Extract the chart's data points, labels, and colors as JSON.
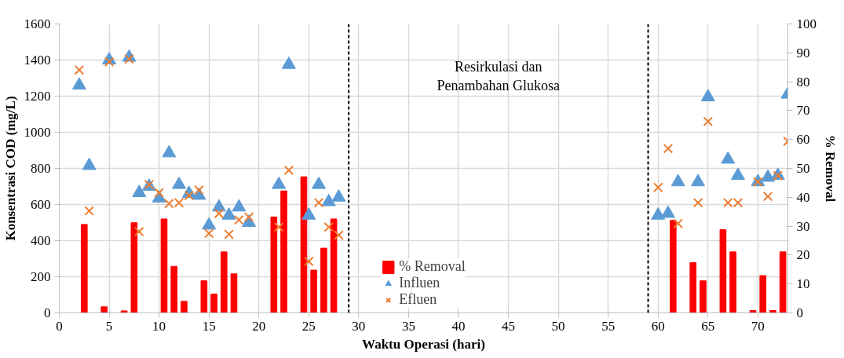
{
  "chart_data": {
    "type": "scatter",
    "xlabel": "Waktu Operasi (hari)",
    "ylabel": "Konsentrasi COD (mg/L)",
    "y2label": "% Removal",
    "xlim": [
      0,
      73
    ],
    "xticks": [
      0,
      5,
      10,
      15,
      20,
      25,
      30,
      35,
      40,
      45,
      50,
      55,
      60,
      65,
      70
    ],
    "ylim": [
      0,
      1600
    ],
    "yticks": [
      0,
      200,
      400,
      600,
      800,
      1000,
      1200,
      1400,
      1600
    ],
    "y2lim": [
      0,
      100
    ],
    "y2ticks": [
      0,
      10,
      20,
      30,
      40,
      50,
      60,
      70,
      80,
      90,
      100
    ],
    "grid": true,
    "legend": "bottom",
    "series": [
      {
        "name": "% Removal",
        "type": "bar",
        "axis": "y2",
        "color": "#ff0000",
        "x": [
          2.5,
          4.5,
          6.5,
          7.5,
          10.5,
          11.5,
          12.5,
          14.5,
          15.5,
          16.5,
          17.5,
          21.5,
          22.5,
          24.5,
          25.5,
          26.5,
          27.5,
          61.5,
          63.5,
          64.5,
          66.5,
          67.5,
          69.5,
          70.5,
          71.5,
          72.5
        ],
        "values": [
          30.6,
          2.1,
          0.7,
          31.2,
          32.5,
          16.1,
          4.0,
          11.1,
          6.5,
          21.1,
          13.5,
          33.2,
          42.2,
          47.1,
          14.8,
          22.4,
          32.5,
          32.0,
          17.4,
          11.1,
          28.8,
          21.1,
          0.8,
          12.9,
          0.8,
          21.1
        ]
      },
      {
        "name": "Influen",
        "marker": "triangle",
        "color": "#5b9bd5",
        "x": [
          2,
          3,
          5,
          7,
          8,
          9,
          10,
          11,
          12,
          13,
          14,
          15,
          16,
          17,
          18,
          19,
          22,
          23,
          25,
          26,
          27,
          28,
          60,
          61,
          62,
          64,
          65,
          67,
          68,
          70,
          71,
          72,
          73
        ],
        "values": [
          1260,
          815,
          1400,
          1415,
          665,
          700,
          635,
          885,
          710,
          660,
          650,
          485,
          585,
          540,
          585,
          500,
          710,
          1375,
          540,
          710,
          615,
          640,
          540,
          550,
          725,
          725,
          1195,
          850,
          760,
          725,
          750,
          760,
          1210
        ]
      },
      {
        "name": "Efluen",
        "marker": "cross",
        "color": "#ed7d31",
        "x": [
          2,
          3,
          5,
          7,
          8,
          9,
          10,
          11,
          12,
          13,
          14,
          15,
          16,
          17,
          18,
          19,
          22,
          23,
          25,
          26,
          27,
          28,
          60,
          61,
          62,
          64,
          65,
          67,
          68,
          70,
          71,
          72,
          73
        ],
        "values": [
          1345,
          565,
          1390,
          1405,
          450,
          710,
          665,
          605,
          610,
          650,
          680,
          440,
          550,
          435,
          515,
          530,
          475,
          790,
          285,
          610,
          475,
          430,
          695,
          910,
          495,
          610,
          1060,
          610,
          610,
          725,
          645,
          760,
          950
        ]
      }
    ],
    "ref_lines": [
      {
        "axis": "x",
        "value": 29,
        "color": "#000000",
        "line_style": "dashed"
      },
      {
        "axis": "x",
        "value": 59,
        "color": "#000000",
        "line_style": "dashed"
      }
    ],
    "annotations": [
      "Resirkulasi dan\nPenambahan Glukosa"
    ]
  }
}
